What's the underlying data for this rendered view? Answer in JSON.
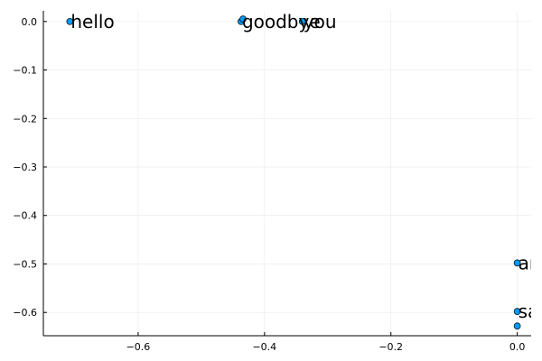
{
  "chart_data": {
    "type": "scatter",
    "title": "",
    "xlabel": "",
    "ylabel": "",
    "xlim": [
      -0.75,
      0.022
    ],
    "ylim": [
      -0.648,
      0.022
    ],
    "xticks": [
      -0.6,
      -0.4,
      -0.2,
      0.0
    ],
    "xtick_labels": [
      "−0.6",
      "−0.4",
      "−0.2",
      "0.0"
    ],
    "yticks": [
      0.0,
      -0.1,
      -0.2,
      -0.3,
      -0.4,
      -0.5,
      -0.6
    ],
    "ytick_labels": [
      "0.0",
      "−0.1",
      "−0.2",
      "−0.3",
      "−0.4",
      "−0.5",
      "−0.6"
    ],
    "grid": true,
    "legend": false,
    "marker_color": "#009AFA",
    "marker_edge_color": "#000000",
    "points": [
      {
        "x": -0.708,
        "y": 0.0,
        "label": "hello"
      },
      {
        "x": -0.437,
        "y": 0.0,
        "label": "goodbye"
      },
      {
        "x": -0.434,
        "y": 0.005,
        "label": ""
      },
      {
        "x": -0.34,
        "y": 0.0,
        "label": "you"
      },
      {
        "x": 0.0,
        "y": -0.498,
        "label": "and"
      },
      {
        "x": 0.0,
        "y": -0.598,
        "label": "say"
      },
      {
        "x": 0.0,
        "y": -0.628,
        "label": ""
      }
    ]
  }
}
